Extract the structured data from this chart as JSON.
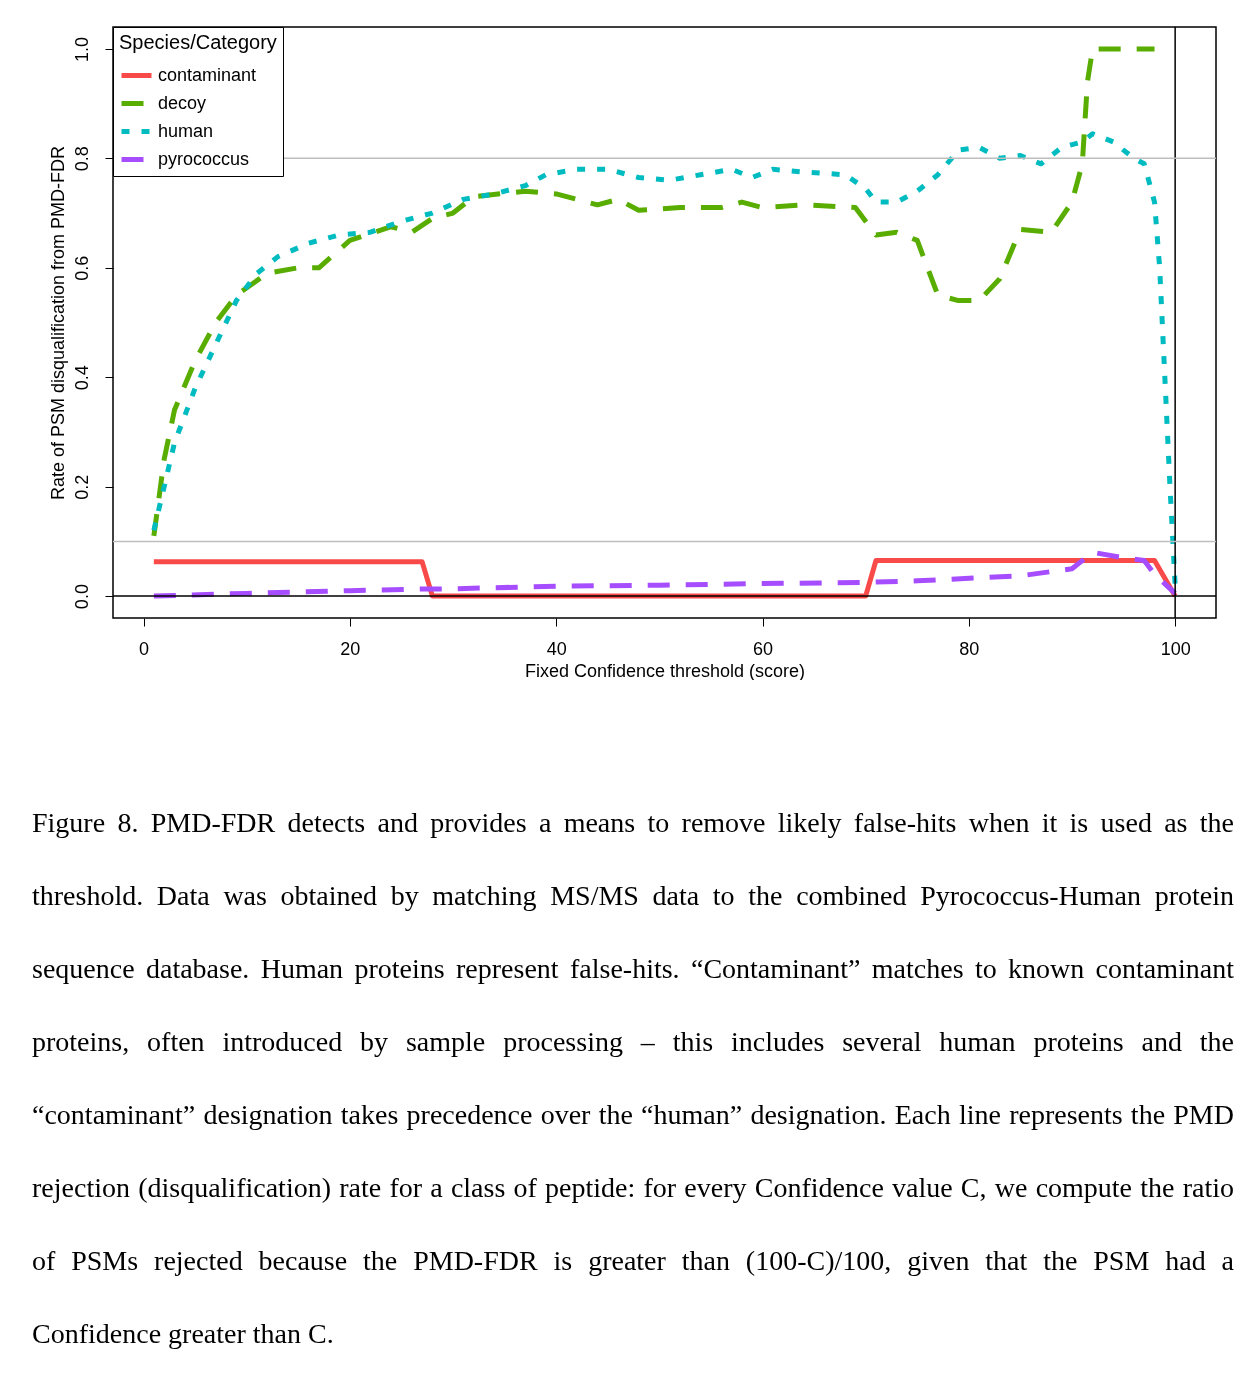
{
  "chart_data": {
    "type": "line",
    "xlabel": "Fixed Confidence threshold (score)",
    "ylabel": "Rate of PSM disqualification from PMD-FDR",
    "legend_title": "Species/Category",
    "legend": "top left",
    "grid": false,
    "xlim": [
      -2.96,
      103.96
    ],
    "ylim": [
      -0.04,
      1.04
    ],
    "xticks": [
      0,
      20,
      40,
      60,
      80,
      100
    ],
    "yticks": [
      {
        "value": 0,
        "label": "0.0"
      },
      {
        "value": 0.2,
        "label": "0.2"
      },
      {
        "value": 0.4,
        "label": "0.4"
      },
      {
        "value": 0.6,
        "label": "0.6"
      },
      {
        "value": 0.8,
        "label": "0.8"
      },
      {
        "value": 1,
        "label": "1.0"
      }
    ],
    "series": [
      {
        "name": "contaminant",
        "color": "#f94a4a",
        "line_style": "solid",
        "x": [
          1,
          27,
          28,
          70,
          71,
          98,
          100
        ],
        "values": [
          0.063,
          0.063,
          0,
          0,
          0.065,
          0.065,
          0
        ]
      },
      {
        "name": "decoy",
        "color": "#58ad00",
        "line_style": "dashed",
        "x": [
          1,
          2,
          3,
          5,
          7,
          9,
          12,
          15,
          17,
          20,
          24,
          26,
          28,
          30,
          32,
          37,
          40,
          44,
          46,
          48,
          52,
          56,
          58,
          60,
          64,
          69,
          71,
          73,
          75,
          77,
          79,
          81,
          83,
          85,
          88,
          90,
          91,
          91.5,
          92,
          98
        ],
        "values": [
          0.11,
          0.25,
          0.34,
          0.43,
          0.5,
          0.55,
          0.59,
          0.6,
          0.6,
          0.65,
          0.675,
          0.665,
          0.69,
          0.7,
          0.73,
          0.74,
          0.735,
          0.715,
          0.725,
          0.705,
          0.71,
          0.71,
          0.72,
          0.71,
          0.715,
          0.71,
          0.66,
          0.665,
          0.65,
          0.55,
          0.54,
          0.54,
          0.58,
          0.67,
          0.665,
          0.72,
          0.79,
          0.94,
          1.0,
          1.0
        ]
      },
      {
        "name": "human",
        "color": "#00bcc0",
        "line_style": "dotted",
        "x": [
          1,
          2,
          3,
          5,
          7,
          9,
          11,
          13,
          16,
          19,
          22,
          25,
          28,
          31,
          34,
          37,
          39,
          42,
          45,
          48,
          51,
          54,
          57,
          59,
          61,
          64,
          68,
          70,
          71,
          73,
          75,
          77,
          79,
          81,
          83,
          85,
          87,
          89,
          91,
          92,
          94,
          96,
          97,
          98,
          98.5,
          99,
          99.5,
          100
        ],
        "values": [
          0.12,
          0.2,
          0.28,
          0.38,
          0.46,
          0.54,
          0.59,
          0.62,
          0.645,
          0.66,
          0.665,
          0.685,
          0.7,
          0.725,
          0.735,
          0.75,
          0.77,
          0.78,
          0.78,
          0.765,
          0.76,
          0.77,
          0.78,
          0.765,
          0.78,
          0.775,
          0.77,
          0.745,
          0.72,
          0.72,
          0.74,
          0.77,
          0.815,
          0.82,
          0.8,
          0.805,
          0.79,
          0.82,
          0.83,
          0.845,
          0.83,
          0.8,
          0.79,
          0.72,
          0.6,
          0.4,
          0.2,
          0.02
        ]
      },
      {
        "name": "pyrococcus",
        "color": "#a64dff",
        "line_style": "dashed",
        "x": [
          1,
          10,
          20,
          27,
          29,
          40,
          50,
          60,
          70,
          75,
          85,
          90,
          92,
          95,
          97,
          98,
          100
        ],
        "values": [
          0,
          0.005,
          0.01,
          0.013,
          0.013,
          0.018,
          0.02,
          0.023,
          0.025,
          0.028,
          0.037,
          0.05,
          0.08,
          0.07,
          0.065,
          0.04,
          0.005
        ]
      }
    ],
    "ref_lines": [
      {
        "axis": "y",
        "value": 0.8,
        "color": "#bebebe"
      },
      {
        "axis": "y",
        "value": 0.1,
        "color": "#bebebe"
      },
      {
        "axis": "y",
        "value": 0,
        "color": "#000000"
      },
      {
        "axis": "x",
        "value": 100,
        "color": "#000000"
      }
    ],
    "annotations": [
      "Figure 8. PMD-FDR detects and provides a means to remove likely false-hits when it is used as the threshold. Data was obtained by matching MS/MS data to the combined Pyrococcus-Human protein sequence database.  Human proteins represent false-hits.  “Contaminant” matches to known contaminant proteins, often introduced by sample processing – this includes several human proteins and the “contaminant” designation takes precedence over the “human” designation.  Each line represents the PMD rejection (disqualification) rate for a class of peptide: for every Confidence value C, we compute the ratio of PSMs rejected because the PMD-FDR is greater than (100-C)/100, given that the PSM had a Confidence greater than C."
    ]
  }
}
